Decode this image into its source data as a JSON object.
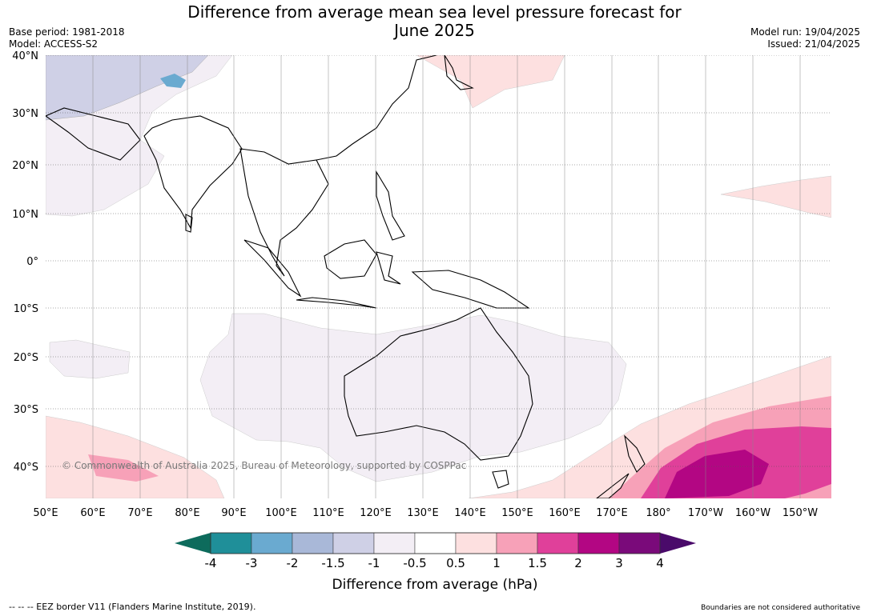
{
  "header": {
    "title_line1": "Difference from average mean sea level pressure forecast for",
    "title_line2": "June 2025",
    "base_period": "Base period: 1981-2018",
    "model": "Model: ACCESS-S2",
    "model_run": "Model run: 19/04/2025",
    "issued": "Issued: 21/04/2025"
  },
  "map": {
    "copyright": "© Commonwealth of Australia 2025, Bureau of Meteorology, supported by COSPPac",
    "lat_labels": [
      "40°N",
      "30°N",
      "20°N",
      "10°N",
      "0°",
      "10°S",
      "20°S",
      "30°S",
      "40°S"
    ],
    "lon_labels": [
      "50°E",
      "60°E",
      "70°E",
      "80°E",
      "90°E",
      "100°E",
      "110°E",
      "120°E",
      "130°E",
      "140°E",
      "150°E",
      "160°E",
      "170°E",
      "180°",
      "170°W",
      "160°W",
      "150°W"
    ]
  },
  "colorbar": {
    "title": "Difference from average (hPa)",
    "tick_labels": [
      "-4",
      "-3",
      "-2",
      "-1.5",
      "-1",
      "-0.5",
      "0.5",
      "1",
      "1.5",
      "2",
      "3",
      "4"
    ],
    "colors": [
      "#0d6b5c",
      "#1f8f99",
      "#6aaad0",
      "#a9b8d8",
      "#cfd0e6",
      "#f3eef5",
      "#ffffff",
      "#fde0e0",
      "#f7a1b8",
      "#e0409a",
      "#b30683",
      "#7a0a7a",
      "#4a0a6a"
    ]
  },
  "footer": {
    "eez": "--  --  -- EEZ border V11 (Flanders Marine Institute, 2019).",
    "disclaimer": "Boundaries are not considered authoritative"
  }
}
